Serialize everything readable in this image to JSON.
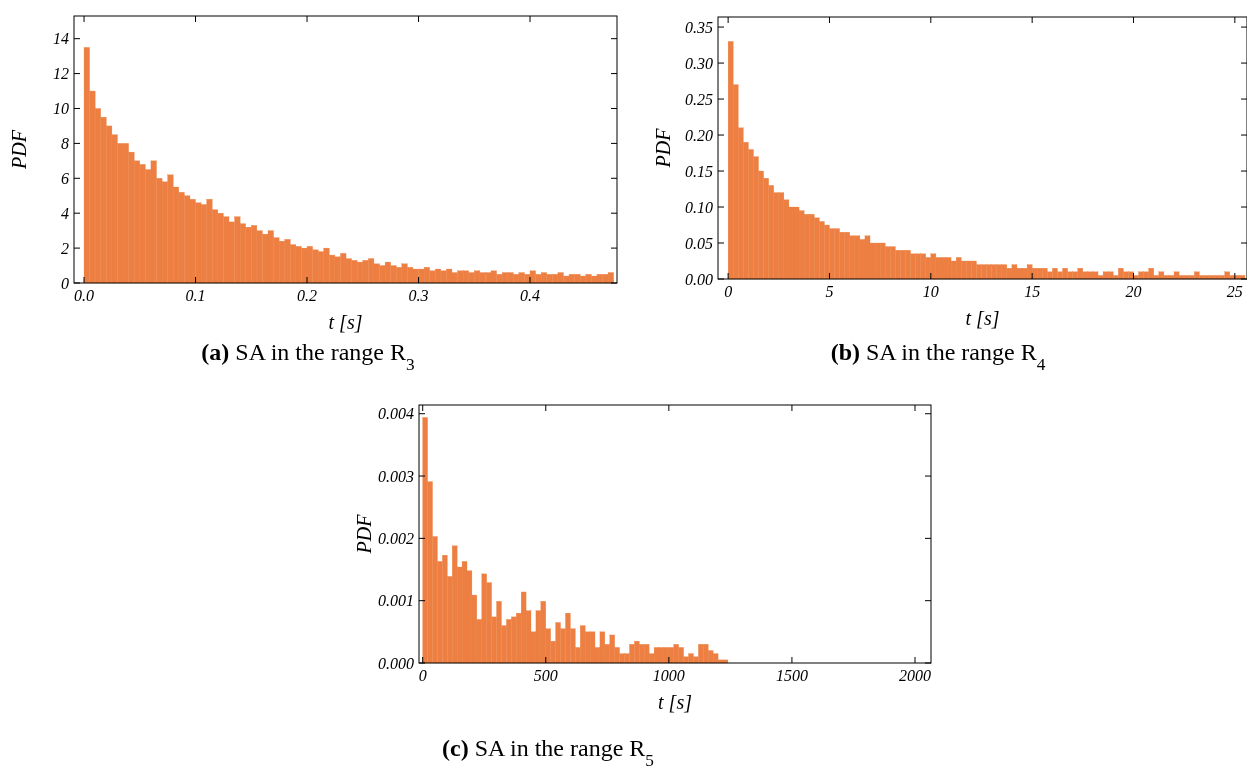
{
  "chart_data": [
    {
      "type": "histogram",
      "xlabel": "t [s]",
      "ylabel": "PDF",
      "color": "#ec7f41",
      "bins": [
        0,
        0.005,
        0.01,
        0.015,
        0.02,
        0.025,
        0.03,
        0.035,
        0.04,
        0.045,
        0.05,
        0.055,
        0.06,
        0.065,
        0.07,
        0.075,
        0.08,
        0.085,
        0.09,
        0.095,
        0.1,
        0.105,
        0.11,
        0.115,
        0.12,
        0.125,
        0.13,
        0.135,
        0.14,
        0.145,
        0.15,
        0.155,
        0.16,
        0.165,
        0.17,
        0.175,
        0.18,
        0.185,
        0.19,
        0.195,
        0.2,
        0.205,
        0.21,
        0.215,
        0.22,
        0.225,
        0.23,
        0.235,
        0.24,
        0.245,
        0.25,
        0.255,
        0.26,
        0.265,
        0.27,
        0.275,
        0.28,
        0.285,
        0.29,
        0.295,
        0.3,
        0.305,
        0.31,
        0.315,
        0.32,
        0.325,
        0.33,
        0.335,
        0.34,
        0.345,
        0.35,
        0.355,
        0.36,
        0.365,
        0.37,
        0.375,
        0.38,
        0.385,
        0.39,
        0.395,
        0.4,
        0.405,
        0.41,
        0.415,
        0.42,
        0.425,
        0.43,
        0.435,
        0.44,
        0.445,
        0.45,
        0.455,
        0.46,
        0.465,
        0.47,
        0.475
      ],
      "values": [
        13.5,
        11,
        10,
        9.5,
        9,
        8.5,
        8,
        8,
        7.5,
        7,
        6.8,
        6.5,
        7,
        6,
        5.8,
        6.2,
        5.5,
        5.2,
        5,
        4.8,
        4.6,
        4.5,
        4.8,
        4.2,
        4,
        3.8,
        3.5,
        3.8,
        3.4,
        3.2,
        3.3,
        3,
        2.8,
        3,
        2.6,
        2.4,
        2.5,
        2.2,
        2.1,
        2,
        2.1,
        1.9,
        1.8,
        2,
        1.6,
        1.5,
        1.7,
        1.4,
        1.3,
        1.2,
        1.3,
        1.4,
        1.1,
        1,
        1.2,
        1,
        0.9,
        1.1,
        0.9,
        0.8,
        0.8,
        0.9,
        0.7,
        0.8,
        0.7,
        0.8,
        0.6,
        0.7,
        0.7,
        0.6,
        0.7,
        0.6,
        0.6,
        0.7,
        0.5,
        0.6,
        0.6,
        0.5,
        0.6,
        0.5,
        0.7,
        0.5,
        0.6,
        0.5,
        0.5,
        0.6,
        0.4,
        0.5,
        0.5,
        0.4,
        0.5,
        0.4,
        0.5,
        0.5,
        0.6
      ],
      "xlim": [
        -0.009,
        0.478
      ],
      "ylim": [
        0,
        15.3
      ],
      "xticks": [
        {
          "value": 0,
          "label": "0.0"
        },
        {
          "value": 0.1,
          "label": "0.1"
        },
        {
          "value": 0.2,
          "label": "0.2"
        },
        {
          "value": 0.3,
          "label": "0.3"
        },
        {
          "value": 0.4,
          "label": "0.4"
        }
      ],
      "yticks": [
        0,
        2,
        4,
        6,
        8,
        10,
        12,
        14
      ],
      "annotations": [
        "(a) SA in the range R$_{3}$"
      ]
    },
    {
      "type": "histogram",
      "xlabel": "t [s]",
      "ylabel": "PDF",
      "color": "#ec7f41",
      "bins": [
        0,
        0.25,
        0.5,
        0.75,
        1,
        1.25,
        1.5,
        1.75,
        2,
        2.25,
        2.5,
        2.75,
        3,
        3.25,
        3.5,
        3.75,
        4,
        4.25,
        4.5,
        4.75,
        5,
        5.25,
        5.5,
        5.75,
        6,
        6.25,
        6.5,
        6.75,
        7,
        7.25,
        7.5,
        7.75,
        8,
        8.25,
        8.5,
        8.75,
        9,
        9.25,
        9.5,
        9.75,
        10,
        10.25,
        10.5,
        10.75,
        11,
        11.25,
        11.5,
        11.75,
        12,
        12.25,
        12.5,
        12.75,
        13,
        13.25,
        13.5,
        13.75,
        14,
        14.25,
        14.5,
        14.75,
        15,
        15.25,
        15.5,
        15.75,
        16,
        16.25,
        16.5,
        16.75,
        17,
        17.25,
        17.5,
        17.75,
        18,
        18.25,
        18.5,
        18.75,
        19,
        19.25,
        19.5,
        19.75,
        20,
        20.25,
        20.5,
        20.75,
        21,
        21.25,
        21.5,
        21.75,
        22,
        22.25,
        22.5,
        22.75,
        23,
        23.25,
        23.5,
        23.75,
        24,
        24.25,
        24.5,
        24.75,
        25,
        25.25,
        25.5
      ],
      "values": [
        0.33,
        0.27,
        0.21,
        0.19,
        0.18,
        0.17,
        0.15,
        0.14,
        0.13,
        0.12,
        0.12,
        0.11,
        0.1,
        0.1,
        0.095,
        0.09,
        0.09,
        0.085,
        0.08,
        0.075,
        0.07,
        0.07,
        0.065,
        0.065,
        0.06,
        0.06,
        0.055,
        0.06,
        0.05,
        0.05,
        0.05,
        0.045,
        0.045,
        0.04,
        0.04,
        0.04,
        0.035,
        0.035,
        0.035,
        0.03,
        0.035,
        0.03,
        0.03,
        0.03,
        0.025,
        0.03,
        0.025,
        0.025,
        0.025,
        0.02,
        0.02,
        0.02,
        0.02,
        0.02,
        0.02,
        0.015,
        0.02,
        0.015,
        0.015,
        0.02,
        0.015,
        0.015,
        0.015,
        0.01,
        0.015,
        0.01,
        0.015,
        0.01,
        0.01,
        0.015,
        0.01,
        0.01,
        0.01,
        0.005,
        0.01,
        0.01,
        0.005,
        0.015,
        0.01,
        0.01,
        0.005,
        0.01,
        0.01,
        0.015,
        0.005,
        0.01,
        0.005,
        0.005,
        0.01,
        0.005,
        0.005,
        0.005,
        0.01,
        0.005,
        0.005,
        0.005,
        0.005,
        0.005,
        0.01,
        0.005,
        0.005,
        0.005
      ],
      "xlim": [
        -0.5,
        25.6
      ],
      "ylim": [
        0,
        0.364
      ],
      "xticks": [
        0,
        5,
        10,
        15,
        20,
        25
      ],
      "yticks": [
        {
          "value": 0,
          "label": "0.00"
        },
        {
          "value": 0.05,
          "label": "0.05"
        },
        {
          "value": 0.1,
          "label": "0.10"
        },
        {
          "value": 0.15,
          "label": "0.15"
        },
        {
          "value": 0.2,
          "label": "0.20"
        },
        {
          "value": 0.25,
          "label": "0.25"
        },
        {
          "value": 0.3,
          "label": "0.30"
        },
        {
          "value": 0.35,
          "label": "0.35"
        }
      ],
      "annotations": [
        "(b) SA in the range R$_{4}$"
      ]
    },
    {
      "type": "histogram",
      "xlabel": "t [s]",
      "ylabel": "PDF",
      "color": "#ec7f41",
      "bins": [
        0,
        20,
        40,
        60,
        80,
        100,
        120,
        140,
        160,
        180,
        200,
        220,
        240,
        260,
        280,
        300,
        320,
        340,
        360,
        380,
        400,
        420,
        440,
        460,
        480,
        500,
        520,
        540,
        560,
        580,
        600,
        620,
        640,
        660,
        680,
        700,
        720,
        740,
        760,
        780,
        800,
        820,
        840,
        860,
        880,
        900,
        920,
        940,
        960,
        980,
        1000,
        1020,
        1040,
        1060,
        1080,
        1100,
        1120,
        1140,
        1160,
        1180,
        1200,
        1220,
        1240
      ],
      "values": [
        0.00394,
        0.00291,
        0.00203,
        0.00163,
        0.00173,
        0.00139,
        0.00188,
        0.00154,
        0.00163,
        0.00148,
        0.00109,
        0.0007,
        0.00143,
        0.00129,
        0.00074,
        0.00099,
        0.0006,
        0.0007,
        0.00074,
        0.0008,
        0.00114,
        0.00084,
        0.0005,
        0.00084,
        0.00099,
        0.00055,
        0.00035,
        0.00065,
        0.00055,
        0.0008,
        0.00055,
        0.00025,
        0.0006,
        0.0005,
        0.0005,
        0.00025,
        0.0005,
        0.0003,
        0.00045,
        0.00025,
        0.00015,
        0.00015,
        0.0003,
        0.00035,
        0.0003,
        0.0003,
        0.00015,
        0.00025,
        0.00025,
        0.00025,
        0.00025,
        0.0003,
        0.00025,
        0.0001,
        0.00015,
        0.0001,
        0.0003,
        0.0003,
        0.0002,
        0.00015,
        5e-05,
        5e-05
      ],
      "xlim": [
        -15,
        2065
      ],
      "ylim": [
        0,
        0.00414
      ],
      "xticks": [
        0,
        500,
        1000,
        1500,
        2000
      ],
      "yticks": [
        {
          "value": 0,
          "label": "0.000"
        },
        {
          "value": 0.001,
          "label": "0.001"
        },
        {
          "value": 0.002,
          "label": "0.002"
        },
        {
          "value": 0.003,
          "label": "0.003"
        },
        {
          "value": 0.004,
          "label": "0.004"
        }
      ],
      "annotations": [
        "(c) SA in the range R$_{5}$"
      ]
    }
  ]
}
